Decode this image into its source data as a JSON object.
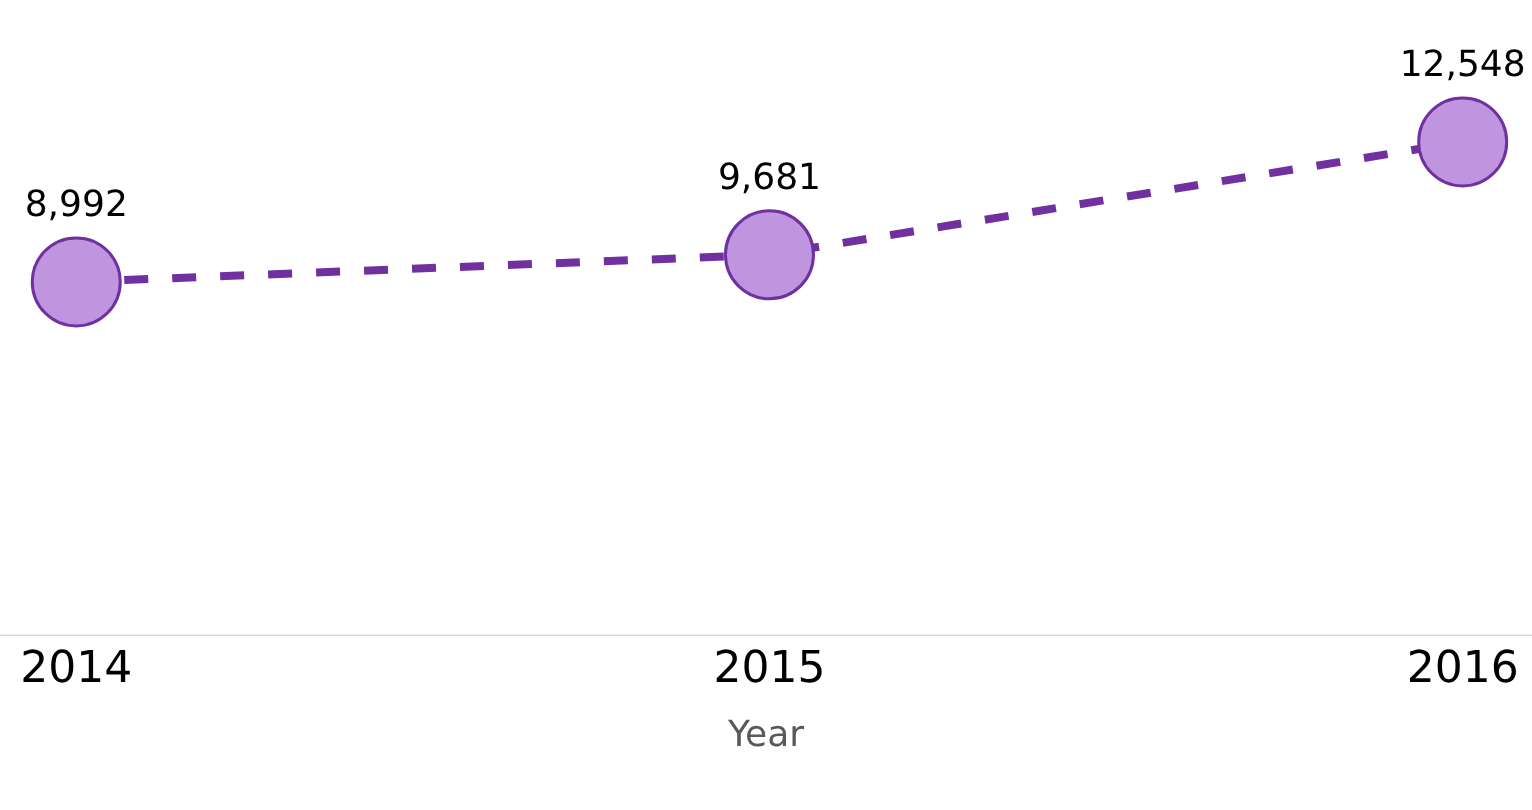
{
  "chart_data": {
    "type": "line",
    "xlabel": "Year",
    "categories": [
      "2014",
      "2015",
      "2016"
    ],
    "series": [
      {
        "color": "#7030a0",
        "values": [
          8992,
          9681,
          12548
        ],
        "value_labels": [
          "8,992",
          "9,681",
          "12,548"
        ]
      }
    ],
    "tick_labels": "x",
    "marker": "circle",
    "line_style": "dashed"
  }
}
